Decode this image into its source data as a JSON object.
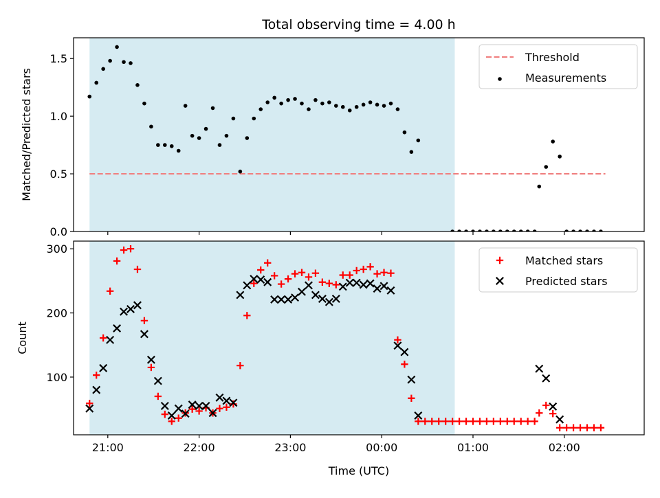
{
  "chart_data": [
    {
      "type": "scatter",
      "title": "Total observing time = 4.00 h",
      "xlabel": "",
      "ylabel": "Matched/Predicted stars",
      "xlim": [
        -0.375,
        5.875
      ],
      "ylim": [
        0,
        1.68
      ],
      "x_unit": "hours after 21:00 UTC",
      "yticks": [
        0.0,
        0.5,
        1.0,
        1.5
      ],
      "ytick_labels": [
        "0.0",
        "0.5",
        "1.0",
        "1.5"
      ],
      "grid": false,
      "legend_position": "top-right",
      "legend": [
        {
          "label": "Threshold",
          "style": "dashed-line",
          "color": "#f08080"
        },
        {
          "label": "Measurements",
          "style": "dot",
          "color": "#000000"
        }
      ],
      "shaded_span": {
        "x0": -0.2,
        "x1": 3.8,
        "color": "#add8e6"
      },
      "threshold": {
        "y": 0.5,
        "x0": -0.2,
        "x1": 5.45
      },
      "series": [
        {
          "name": "Measurements",
          "marker": "dot",
          "color": "#000000",
          "points": [
            [
              -0.2,
              1.17
            ],
            [
              -0.125,
              1.29
            ],
            [
              -0.05,
              1.41
            ],
            [
              0.025,
              1.48
            ],
            [
              0.1,
              1.6
            ],
            [
              0.175,
              1.47
            ],
            [
              0.25,
              1.46
            ],
            [
              0.325,
              1.27
            ],
            [
              0.4,
              1.11
            ],
            [
              0.475,
              0.91
            ],
            [
              0.55,
              0.75
            ],
            [
              0.625,
              0.75
            ],
            [
              0.7,
              0.74
            ],
            [
              0.775,
              0.7
            ],
            [
              0.85,
              1.09
            ],
            [
              0.925,
              0.83
            ],
            [
              1.0,
              0.81
            ],
            [
              1.075,
              0.89
            ],
            [
              1.15,
              1.07
            ],
            [
              1.225,
              0.75
            ],
            [
              1.3,
              0.83
            ],
            [
              1.375,
              0.98
            ],
            [
              1.45,
              0.52
            ],
            [
              1.525,
              0.81
            ],
            [
              1.6,
              0.98
            ],
            [
              1.675,
              1.06
            ],
            [
              1.75,
              1.12
            ],
            [
              1.825,
              1.16
            ],
            [
              1.9,
              1.11
            ],
            [
              1.975,
              1.14
            ],
            [
              2.05,
              1.15
            ],
            [
              2.125,
              1.11
            ],
            [
              2.2,
              1.06
            ],
            [
              2.275,
              1.14
            ],
            [
              2.35,
              1.11
            ],
            [
              2.425,
              1.12
            ],
            [
              2.5,
              1.09
            ],
            [
              2.575,
              1.08
            ],
            [
              2.65,
              1.05
            ],
            [
              2.725,
              1.08
            ],
            [
              2.8,
              1.1
            ],
            [
              2.875,
              1.12
            ],
            [
              2.95,
              1.1
            ],
            [
              3.025,
              1.09
            ],
            [
              3.1,
              1.11
            ],
            [
              3.175,
              1.06
            ],
            [
              3.25,
              0.86
            ],
            [
              3.325,
              0.69
            ],
            [
              3.4,
              0.79
            ],
            [
              3.775,
              0.0
            ],
            [
              3.85,
              0.0
            ],
            [
              3.925,
              0.0
            ],
            [
              4.0,
              0.0
            ],
            [
              4.075,
              0.0
            ],
            [
              4.15,
              0.0
            ],
            [
              4.225,
              0.0
            ],
            [
              4.3,
              0.0
            ],
            [
              4.375,
              0.0
            ],
            [
              4.45,
              0.0
            ],
            [
              4.525,
              0.0
            ],
            [
              4.6,
              0.0
            ],
            [
              4.675,
              0.0
            ],
            [
              4.725,
              0.39
            ],
            [
              4.8,
              0.56
            ],
            [
              4.875,
              0.78
            ],
            [
              4.95,
              0.65
            ],
            [
              5.025,
              0.0
            ],
            [
              5.1,
              0.0
            ],
            [
              5.175,
              0.0
            ],
            [
              5.25,
              0.0
            ],
            [
              5.325,
              0.0
            ],
            [
              5.4,
              0.0
            ]
          ]
        }
      ]
    },
    {
      "type": "scatter",
      "title": "",
      "xlabel": "Time (UTC)",
      "ylabel": "Count",
      "xlim": [
        -0.375,
        5.875
      ],
      "ylim": [
        10,
        312
      ],
      "x_unit": "hours after 21:00 UTC",
      "xticks": [
        0,
        1,
        2,
        3,
        4,
        5
      ],
      "xtick_labels": [
        "21:00",
        "22:00",
        "23:00",
        "00:00",
        "01:00",
        "02:00"
      ],
      "yticks": [
        100,
        200,
        300
      ],
      "ytick_labels": [
        "100",
        "200",
        "300"
      ],
      "grid": false,
      "legend_position": "top-right",
      "legend": [
        {
          "label": "Matched stars",
          "style": "plus",
          "color": "#ff0000"
        },
        {
          "label": "Predicted stars",
          "style": "cross",
          "color": "#000000"
        }
      ],
      "shaded_span": {
        "x0": -0.2,
        "x1": 3.8,
        "color": "#add8e6"
      },
      "series": [
        {
          "name": "Matched stars",
          "marker": "plus",
          "color": "#ff0000",
          "points": [
            [
              -0.2,
              59
            ],
            [
              -0.125,
              103
            ],
            [
              -0.05,
              161
            ],
            [
              0.025,
              234
            ],
            [
              0.1,
              281
            ],
            [
              0.175,
              298
            ],
            [
              0.25,
              300
            ],
            [
              0.325,
              268
            ],
            [
              0.4,
              188
            ],
            [
              0.475,
              115
            ],
            [
              0.55,
              70
            ],
            [
              0.625,
              42
            ],
            [
              0.7,
              31
            ],
            [
              0.775,
              36
            ],
            [
              0.85,
              44
            ],
            [
              0.925,
              50
            ],
            [
              1.0,
              47
            ],
            [
              1.075,
              52
            ],
            [
              1.15,
              44
            ],
            [
              1.225,
              51
            ],
            [
              1.3,
              53
            ],
            [
              1.375,
              58
            ],
            [
              1.45,
              118
            ],
            [
              1.525,
              196
            ],
            [
              1.6,
              246
            ],
            [
              1.675,
              267
            ],
            [
              1.75,
              278
            ],
            [
              1.825,
              258
            ],
            [
              1.9,
              245
            ],
            [
              1.975,
              253
            ],
            [
              2.05,
              261
            ],
            [
              2.125,
              263
            ],
            [
              2.2,
              256
            ],
            [
              2.275,
              262
            ],
            [
              2.35,
              248
            ],
            [
              2.425,
              246
            ],
            [
              2.5,
              244
            ],
            [
              2.575,
              259
            ],
            [
              2.65,
              259
            ],
            [
              2.725,
              266
            ],
            [
              2.8,
              268
            ],
            [
              2.875,
              272
            ],
            [
              2.95,
              261
            ],
            [
              3.025,
              263
            ],
            [
              3.1,
              262
            ],
            [
              3.175,
              158
            ],
            [
              3.25,
              120
            ],
            [
              3.325,
              67
            ],
            [
              3.4,
              31
            ],
            [
              3.475,
              31
            ],
            [
              3.55,
              31
            ],
            [
              3.625,
              31
            ],
            [
              3.7,
              31
            ],
            [
              3.775,
              31
            ],
            [
              3.85,
              31
            ],
            [
              3.925,
              31
            ],
            [
              4.0,
              31
            ],
            [
              4.075,
              31
            ],
            [
              4.15,
              31
            ],
            [
              4.225,
              31
            ],
            [
              4.3,
              31
            ],
            [
              4.375,
              31
            ],
            [
              4.45,
              31
            ],
            [
              4.525,
              31
            ],
            [
              4.6,
              31
            ],
            [
              4.675,
              31
            ],
            [
              4.725,
              44
            ],
            [
              4.8,
              56
            ],
            [
              4.875,
              43
            ],
            [
              4.95,
              21
            ],
            [
              5.025,
              21
            ],
            [
              5.1,
              21
            ],
            [
              5.175,
              21
            ],
            [
              5.25,
              21
            ],
            [
              5.325,
              21
            ],
            [
              5.4,
              21
            ]
          ]
        },
        {
          "name": "Predicted stars",
          "marker": "cross",
          "color": "#000000",
          "points": [
            [
              -0.2,
              51
            ],
            [
              -0.125,
              80
            ],
            [
              -0.05,
              114
            ],
            [
              0.025,
              158
            ],
            [
              0.1,
              176
            ],
            [
              0.175,
              202
            ],
            [
              0.25,
              206
            ],
            [
              0.325,
              212
            ],
            [
              0.4,
              167
            ],
            [
              0.475,
              127
            ],
            [
              0.55,
              94
            ],
            [
              0.625,
              55
            ],
            [
              0.7,
              40
            ],
            [
              0.775,
              51
            ],
            [
              0.85,
              43
            ],
            [
              0.925,
              57
            ],
            [
              1.0,
              55
            ],
            [
              1.075,
              55
            ],
            [
              1.15,
              44
            ],
            [
              1.225,
              68
            ],
            [
              1.3,
              63
            ],
            [
              1.375,
              60
            ],
            [
              1.45,
              228
            ],
            [
              1.525,
              243
            ],
            [
              1.6,
              253
            ],
            [
              1.675,
              252
            ],
            [
              1.75,
              248
            ],
            [
              1.825,
              221
            ],
            [
              1.9,
              221
            ],
            [
              1.975,
              221
            ],
            [
              2.05,
              224
            ],
            [
              2.125,
              233
            ],
            [
              2.2,
              243
            ],
            [
              2.275,
              228
            ],
            [
              2.35,
              222
            ],
            [
              2.425,
              217
            ],
            [
              2.5,
              222
            ],
            [
              2.575,
              241
            ],
            [
              2.65,
              247
            ],
            [
              2.725,
              247
            ],
            [
              2.8,
              244
            ],
            [
              2.875,
              246
            ],
            [
              2.95,
              238
            ],
            [
              3.025,
              242
            ],
            [
              3.1,
              235
            ],
            [
              3.175,
              149
            ],
            [
              3.25,
              139
            ],
            [
              3.325,
              96
            ],
            [
              3.4,
              40
            ],
            [
              4.725,
              113
            ],
            [
              4.8,
              98
            ],
            [
              4.875,
              54
            ],
            [
              4.95,
              34
            ]
          ]
        }
      ]
    }
  ]
}
